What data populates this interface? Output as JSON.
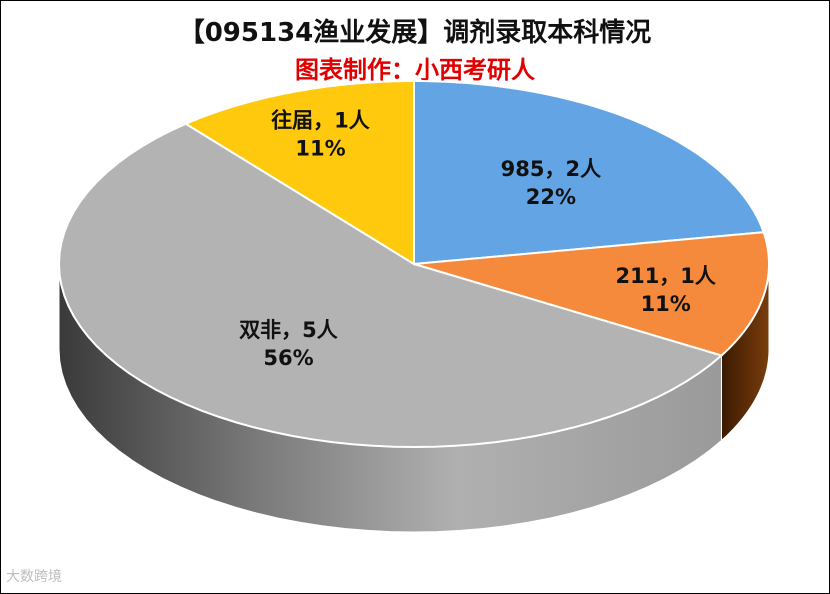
{
  "chart_data": {
    "type": "pie",
    "title": "【095134渔业发展】调剂录取本科情况",
    "subtitle": "图表制作：小西考研人",
    "slices": [
      {
        "label": "985，2人",
        "pct_label": "22%",
        "value": 2,
        "color": "#62a4e4"
      },
      {
        "label": "211，1人",
        "pct_label": "11%",
        "value": 1,
        "color": "#f58a3d"
      },
      {
        "label": "双非，5人",
        "pct_label": "56%",
        "value": 5,
        "color": "#b3b3b3"
      },
      {
        "label": "往届，1人",
        "pct_label": "11%",
        "value": 1,
        "color": "#ffc90e"
      }
    ]
  },
  "watermark": "大数跨境"
}
